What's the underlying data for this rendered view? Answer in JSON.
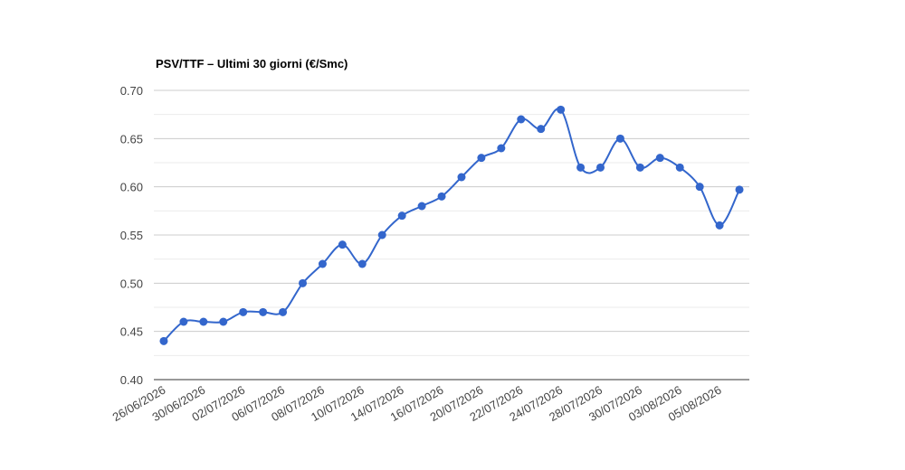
{
  "chart_data": {
    "type": "line",
    "title": "PSV/TTF – Ultimi 30 giorni (€/Smc)",
    "categories": [
      "26/06/2026",
      null,
      "30/06/2026",
      null,
      "02/07/2026",
      null,
      "06/07/2026",
      null,
      "08/07/2026",
      null,
      "10/07/2026",
      null,
      "14/07/2026",
      null,
      "16/07/2026",
      null,
      "20/07/2026",
      null,
      "22/07/2026",
      null,
      "24/07/2026",
      null,
      "28/07/2026",
      null,
      "30/07/2026",
      null,
      "03/08/2026",
      null,
      "05/08/2026",
      null
    ],
    "series": [
      {
        "name": "PSV/TTF",
        "color": "#3366cc",
        "values": [
          0.44,
          0.46,
          0.46,
          0.46,
          0.47,
          0.47,
          0.47,
          0.5,
          0.52,
          0.54,
          0.52,
          0.55,
          0.57,
          0.58,
          0.59,
          0.61,
          0.63,
          0.64,
          0.67,
          0.66,
          0.68,
          0.62,
          0.62,
          0.65,
          0.62,
          0.63,
          0.62,
          0.6,
          0.56,
          0.597
        ]
      }
    ],
    "ylim": [
      0.4,
      0.7
    ],
    "yticks": [
      {
        "value": 0.4,
        "label": "0.40"
      },
      {
        "value": 0.45,
        "label": "0.45"
      },
      {
        "value": 0.5,
        "label": "0.50"
      },
      {
        "value": 0.55,
        "label": "0.55"
      },
      {
        "value": 0.6,
        "label": "0.60"
      },
      {
        "value": 0.65,
        "label": "0.65"
      },
      {
        "value": 0.7,
        "label": "0.70"
      }
    ],
    "grid": true,
    "minor_grid": true,
    "smooth": true
  }
}
